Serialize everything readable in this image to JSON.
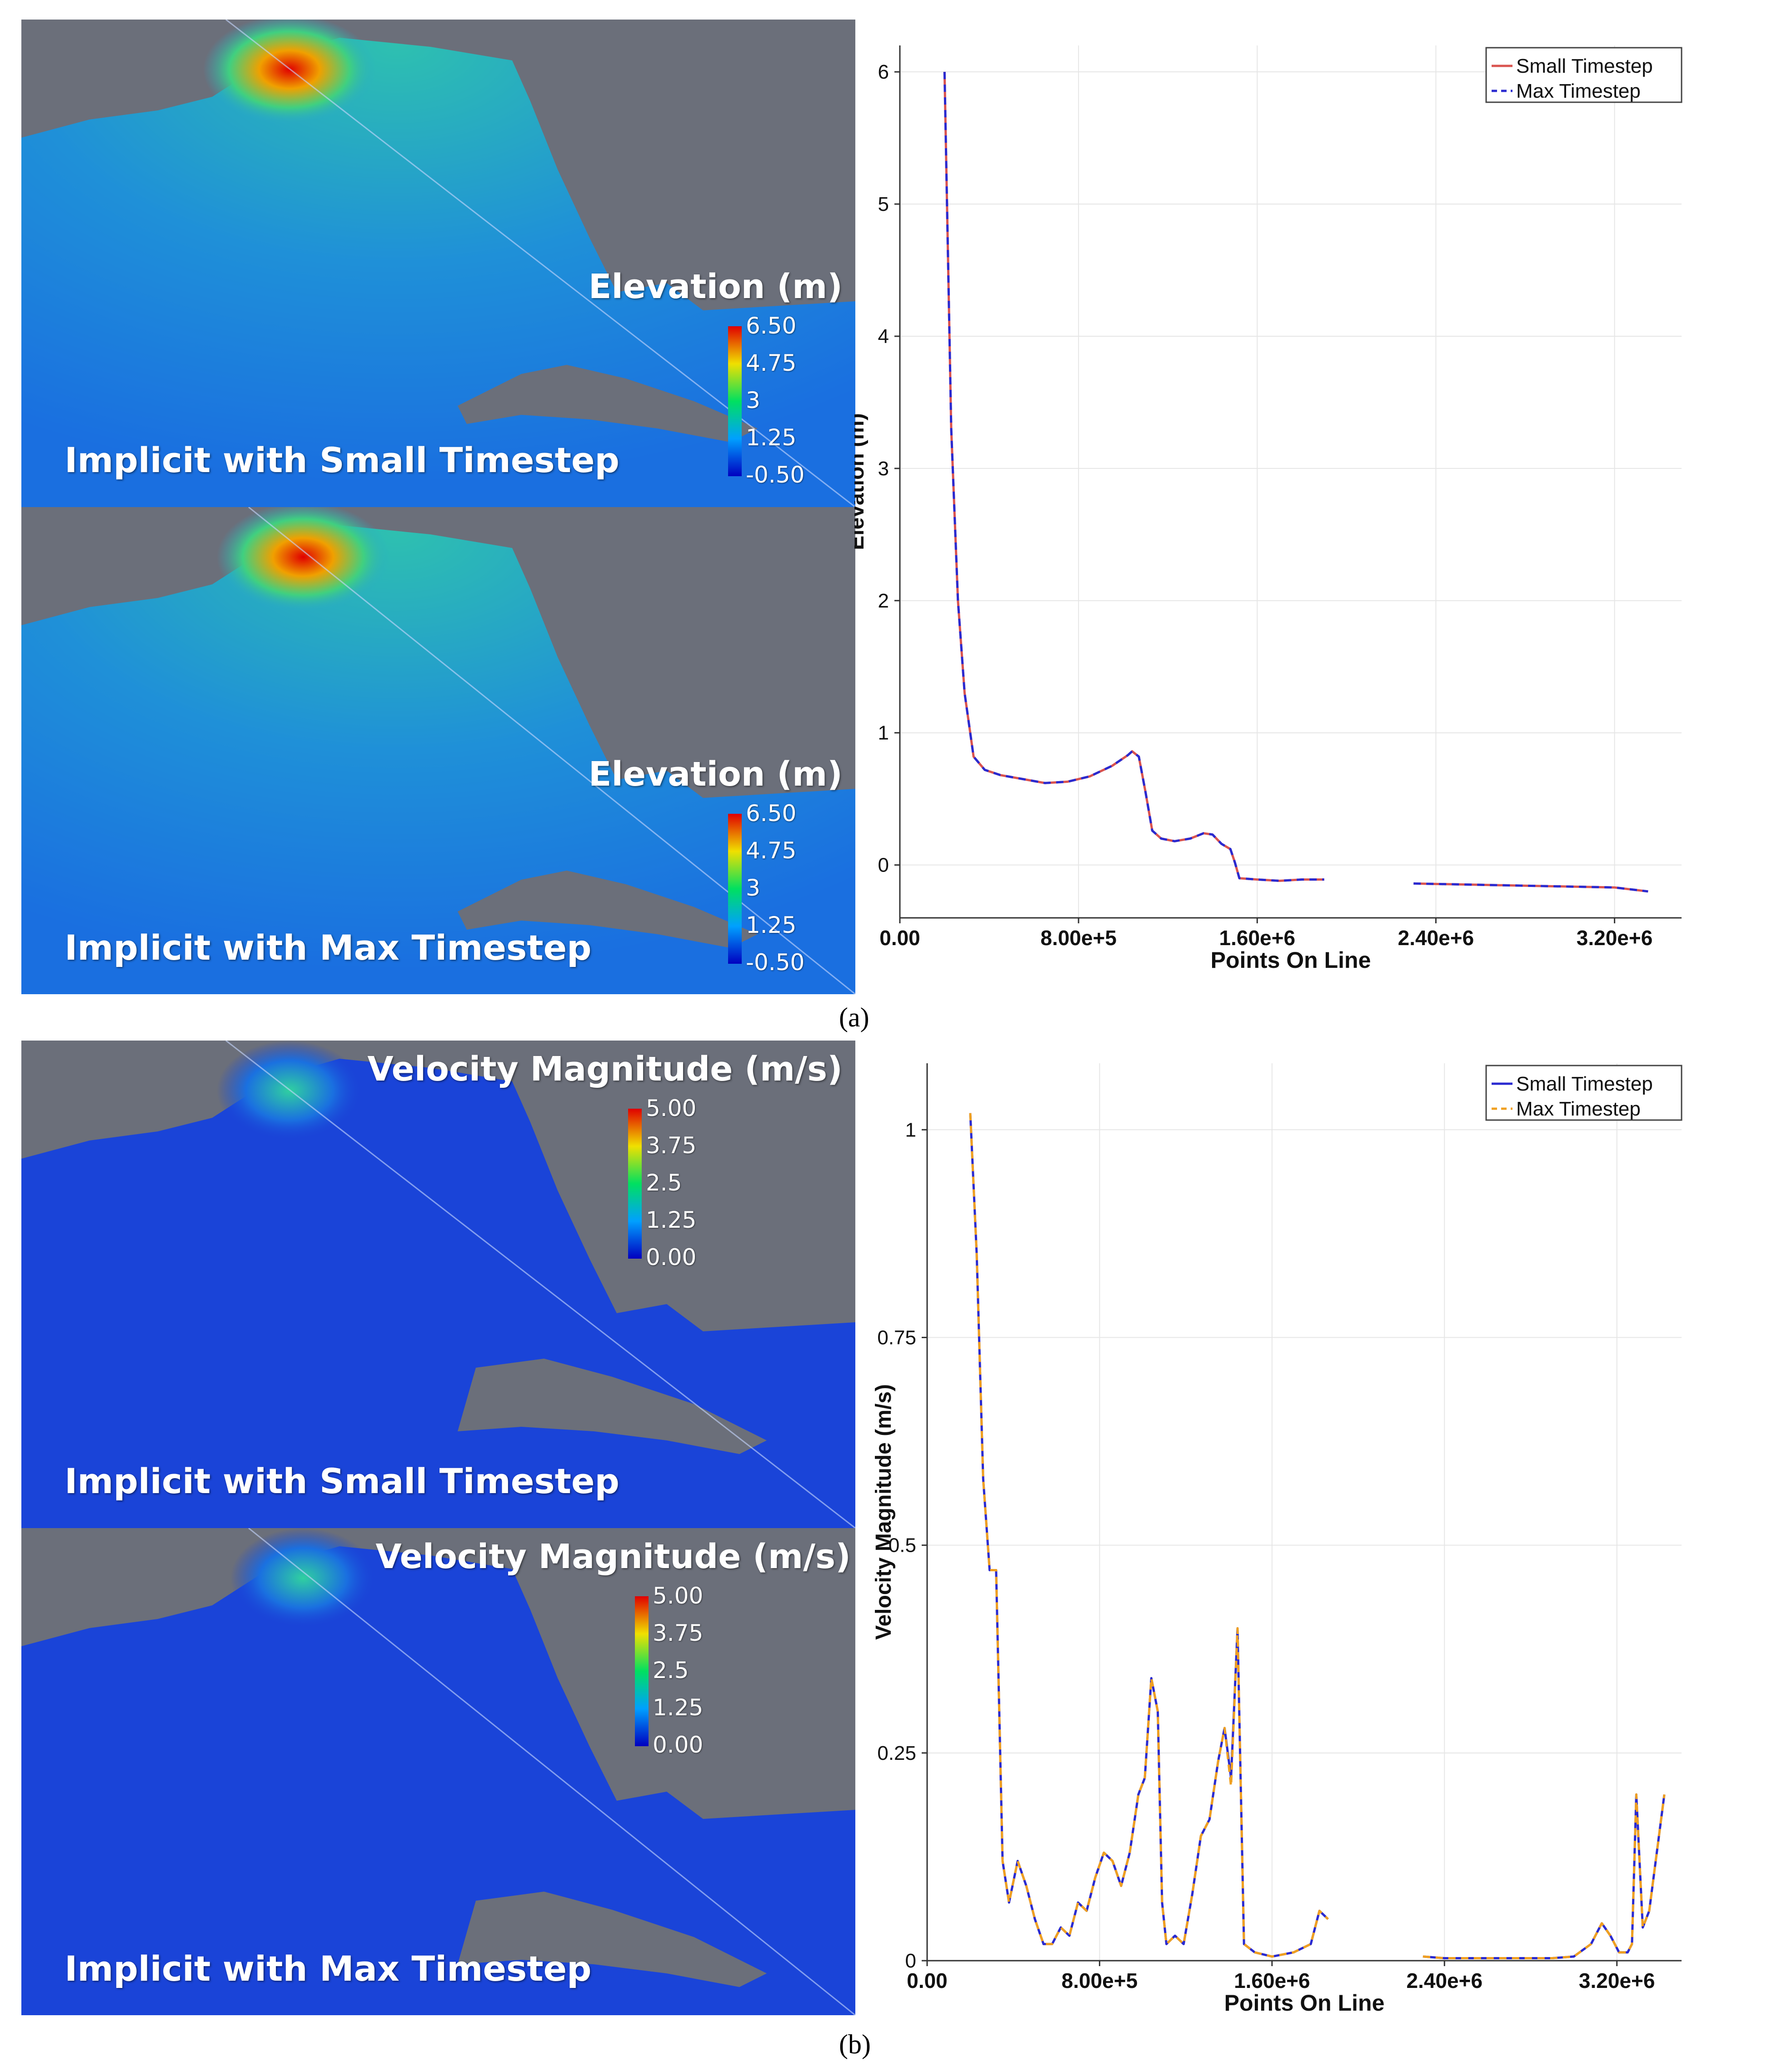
{
  "panel_a": {
    "label": "(a)",
    "maps": [
      {
        "caption": "Implicit with Small Timestep",
        "colorbar_title": "Elevation (m)",
        "colorbar_ticks": [
          "6.50",
          "4.75",
          "3",
          "1.25",
          "-0.50"
        ]
      },
      {
        "caption": "Implicit with Max Timestep",
        "colorbar_title": "Elevation (m)",
        "colorbar_ticks": [
          "6.50",
          "4.75",
          "3",
          "1.25",
          "-0.50"
        ]
      }
    ]
  },
  "panel_b": {
    "label": "(b)",
    "maps": [
      {
        "caption": "Implicit with Small Timestep",
        "colorbar_title": "Velocity Magnitude (m/s)",
        "colorbar_ticks": [
          "5.00",
          "3.75",
          "2.5",
          "1.25",
          "0.00"
        ]
      },
      {
        "caption": "Implicit with Max Timestep",
        "colorbar_title": "Velocity Magnitude (m/s)",
        "colorbar_ticks": [
          "5.00",
          "3.75",
          "2.5",
          "1.25",
          "0.00"
        ]
      }
    ]
  },
  "colors": {
    "ocean": "#1a44d8",
    "land": "#6b6f7a",
    "small_timestep_a": "#d9534f",
    "max_timestep_a": "#2a2ad0",
    "small_timestep_b": "#2a2ad0",
    "max_timestep_b": "#f0a020"
  },
  "chart_data": [
    {
      "type": "line",
      "xlabel": "Points On Line",
      "ylabel": "Elevation (m)",
      "xlim": [
        0,
        3500000
      ],
      "ylim": [
        -0.4,
        6.2
      ],
      "xticks": [
        0,
        800000,
        1600000,
        2400000,
        3200000
      ],
      "xtick_labels": [
        "0.00",
        "8.00e+5",
        "1.60e+6",
        "2.40e+6",
        "3.20e+6"
      ],
      "yticks": [
        0,
        1,
        2,
        3,
        4,
        5,
        6
      ],
      "ytick_labels": [
        "0",
        "1",
        "2",
        "3",
        "4",
        "5",
        "6"
      ],
      "grid": true,
      "legend_position": "top-right",
      "series": [
        {
          "name": "Small Timestep",
          "style": "solid",
          "segments": [
            [
              [
                200000,
                6.0
              ],
              [
                230000,
                3.3
              ],
              [
                260000,
                2.0
              ],
              [
                290000,
                1.3
              ],
              [
                330000,
                0.82
              ],
              [
                380000,
                0.72
              ],
              [
                450000,
                0.68
              ],
              [
                550000,
                0.65
              ],
              [
                650000,
                0.62
              ],
              [
                750000,
                0.63
              ],
              [
                850000,
                0.67
              ],
              [
                950000,
                0.75
              ],
              [
                1020000,
                0.83
              ],
              [
                1040000,
                0.86
              ],
              [
                1070000,
                0.82
              ],
              [
                1100000,
                0.55
              ],
              [
                1130000,
                0.26
              ],
              [
                1170000,
                0.2
              ],
              [
                1230000,
                0.18
              ],
              [
                1300000,
                0.2
              ],
              [
                1360000,
                0.24
              ],
              [
                1400000,
                0.23
              ],
              [
                1440000,
                0.16
              ],
              [
                1480000,
                0.12
              ],
              [
                1500000,
                0.02
              ],
              [
                1520000,
                -0.1
              ],
              [
                1600000,
                -0.11
              ],
              [
                1700000,
                -0.12
              ],
              [
                1800000,
                -0.11
              ],
              [
                1900000,
                -0.11
              ]
            ],
            [
              [
                2300000,
                -0.14
              ],
              [
                2600000,
                -0.15
              ],
              [
                2900000,
                -0.16
              ],
              [
                3200000,
                -0.17
              ],
              [
                3350000,
                -0.2
              ]
            ]
          ]
        },
        {
          "name": "Max Timestep",
          "style": "dashed",
          "segments": [
            [
              [
                200000,
                6.0
              ],
              [
                230000,
                3.3
              ],
              [
                260000,
                2.0
              ],
              [
                290000,
                1.3
              ],
              [
                330000,
                0.82
              ],
              [
                380000,
                0.72
              ],
              [
                450000,
                0.68
              ],
              [
                550000,
                0.65
              ],
              [
                650000,
                0.62
              ],
              [
                750000,
                0.63
              ],
              [
                850000,
                0.67
              ],
              [
                950000,
                0.75
              ],
              [
                1020000,
                0.83
              ],
              [
                1040000,
                0.86
              ],
              [
                1070000,
                0.82
              ],
              [
                1100000,
                0.55
              ],
              [
                1130000,
                0.26
              ],
              [
                1170000,
                0.2
              ],
              [
                1230000,
                0.18
              ],
              [
                1300000,
                0.2
              ],
              [
                1360000,
                0.24
              ],
              [
                1400000,
                0.23
              ],
              [
                1440000,
                0.16
              ],
              [
                1480000,
                0.12
              ],
              [
                1500000,
                0.02
              ],
              [
                1520000,
                -0.1
              ],
              [
                1600000,
                -0.11
              ],
              [
                1700000,
                -0.12
              ],
              [
                1800000,
                -0.11
              ],
              [
                1900000,
                -0.11
              ]
            ],
            [
              [
                2300000,
                -0.14
              ],
              [
                2600000,
                -0.15
              ],
              [
                2900000,
                -0.16
              ],
              [
                3200000,
                -0.17
              ],
              [
                3350000,
                -0.2
              ]
            ]
          ]
        }
      ]
    },
    {
      "type": "line",
      "xlabel": "Points On Line",
      "ylabel": "Velocity Magnitude (m/s)",
      "xlim": [
        0,
        3500000
      ],
      "ylim": [
        0,
        1.08
      ],
      "xticks": [
        0,
        800000,
        1600000,
        2400000,
        3200000
      ],
      "xtick_labels": [
        "0.00",
        "8.00e+5",
        "1.60e+6",
        "2.40e+6",
        "3.20e+6"
      ],
      "yticks": [
        0,
        0.25,
        0.5,
        0.75,
        1
      ],
      "ytick_labels": [
        "0",
        "0.25",
        "0.5",
        "0.75",
        "1"
      ],
      "grid": true,
      "legend_position": "top-right",
      "series": [
        {
          "name": "Small Timestep",
          "style": "solid",
          "segments": [
            [
              [
                200000,
                1.02
              ],
              [
                230000,
                0.85
              ],
              [
                260000,
                0.58
              ],
              [
                290000,
                0.47
              ],
              [
                320000,
                0.47
              ],
              [
                350000,
                0.12
              ],
              [
                380000,
                0.07
              ],
              [
                420000,
                0.12
              ],
              [
                460000,
                0.09
              ],
              [
                500000,
                0.05
              ],
              [
                540000,
                0.02
              ],
              [
                580000,
                0.02
              ],
              [
                620000,
                0.04
              ],
              [
                660000,
                0.03
              ],
              [
                700000,
                0.07
              ],
              [
                740000,
                0.06
              ],
              [
                780000,
                0.1
              ],
              [
                820000,
                0.13
              ],
              [
                860000,
                0.12
              ],
              [
                900000,
                0.09
              ],
              [
                940000,
                0.13
              ],
              [
                980000,
                0.2
              ],
              [
                1010000,
                0.22
              ],
              [
                1040000,
                0.34
              ],
              [
                1070000,
                0.3
              ],
              [
                1090000,
                0.07
              ],
              [
                1110000,
                0.02
              ],
              [
                1150000,
                0.03
              ],
              [
                1190000,
                0.02
              ],
              [
                1230000,
                0.08
              ],
              [
                1270000,
                0.15
              ],
              [
                1310000,
                0.17
              ],
              [
                1350000,
                0.24
              ],
              [
                1380000,
                0.28
              ],
              [
                1410000,
                0.22
              ],
              [
                1440000,
                0.4
              ],
              [
                1470000,
                0.02
              ],
              [
                1520000,
                0.01
              ],
              [
                1600000,
                0.005
              ],
              [
                1700000,
                0.01
              ],
              [
                1780000,
                0.02
              ],
              [
                1820000,
                0.06
              ],
              [
                1860000,
                0.05
              ]
            ],
            [
              [
                2300000,
                0.005
              ],
              [
                2400000,
                0.003
              ],
              [
                2700000,
                0.003
              ],
              [
                2900000,
                0.003
              ],
              [
                3000000,
                0.005
              ],
              [
                3080000,
                0.02
              ],
              [
                3130000,
                0.045
              ],
              [
                3170000,
                0.03
              ],
              [
                3210000,
                0.01
              ],
              [
                3250000,
                0.01
              ],
              [
                3270000,
                0.02
              ],
              [
                3290000,
                0.2
              ],
              [
                3320000,
                0.04
              ],
              [
                3350000,
                0.06
              ],
              [
                3380000,
                0.12
              ],
              [
                3420000,
                0.2
              ]
            ]
          ]
        },
        {
          "name": "Max Timestep",
          "style": "dashed",
          "segments": [
            [
              [
                200000,
                1.02
              ],
              [
                230000,
                0.85
              ],
              [
                260000,
                0.58
              ],
              [
                290000,
                0.47
              ],
              [
                320000,
                0.47
              ],
              [
                350000,
                0.12
              ],
              [
                380000,
                0.07
              ],
              [
                420000,
                0.12
              ],
              [
                460000,
                0.09
              ],
              [
                500000,
                0.05
              ],
              [
                540000,
                0.02
              ],
              [
                580000,
                0.02
              ],
              [
                620000,
                0.04
              ],
              [
                660000,
                0.03
              ],
              [
                700000,
                0.07
              ],
              [
                740000,
                0.06
              ],
              [
                780000,
                0.1
              ],
              [
                820000,
                0.13
              ],
              [
                860000,
                0.12
              ],
              [
                900000,
                0.09
              ],
              [
                940000,
                0.13
              ],
              [
                980000,
                0.2
              ],
              [
                1010000,
                0.22
              ],
              [
                1040000,
                0.34
              ],
              [
                1070000,
                0.3
              ],
              [
                1090000,
                0.07
              ],
              [
                1110000,
                0.02
              ],
              [
                1150000,
                0.03
              ],
              [
                1190000,
                0.02
              ],
              [
                1230000,
                0.08
              ],
              [
                1270000,
                0.15
              ],
              [
                1310000,
                0.17
              ],
              [
                1350000,
                0.24
              ],
              [
                1380000,
                0.28
              ],
              [
                1410000,
                0.21
              ],
              [
                1440000,
                0.4
              ],
              [
                1470000,
                0.02
              ],
              [
                1520000,
                0.01
              ],
              [
                1600000,
                0.005
              ],
              [
                1700000,
                0.01
              ],
              [
                1780000,
                0.02
              ],
              [
                1820000,
                0.06
              ],
              [
                1860000,
                0.05
              ]
            ],
            [
              [
                2300000,
                0.005
              ],
              [
                2400000,
                0.003
              ],
              [
                2700000,
                0.003
              ],
              [
                2900000,
                0.003
              ],
              [
                3000000,
                0.005
              ],
              [
                3080000,
                0.02
              ],
              [
                3130000,
                0.045
              ],
              [
                3170000,
                0.03
              ],
              [
                3210000,
                0.01
              ],
              [
                3250000,
                0.01
              ],
              [
                3270000,
                0.02
              ],
              [
                3290000,
                0.2
              ],
              [
                3320000,
                0.04
              ],
              [
                3350000,
                0.06
              ],
              [
                3380000,
                0.12
              ],
              [
                3420000,
                0.2
              ]
            ]
          ]
        }
      ]
    }
  ]
}
